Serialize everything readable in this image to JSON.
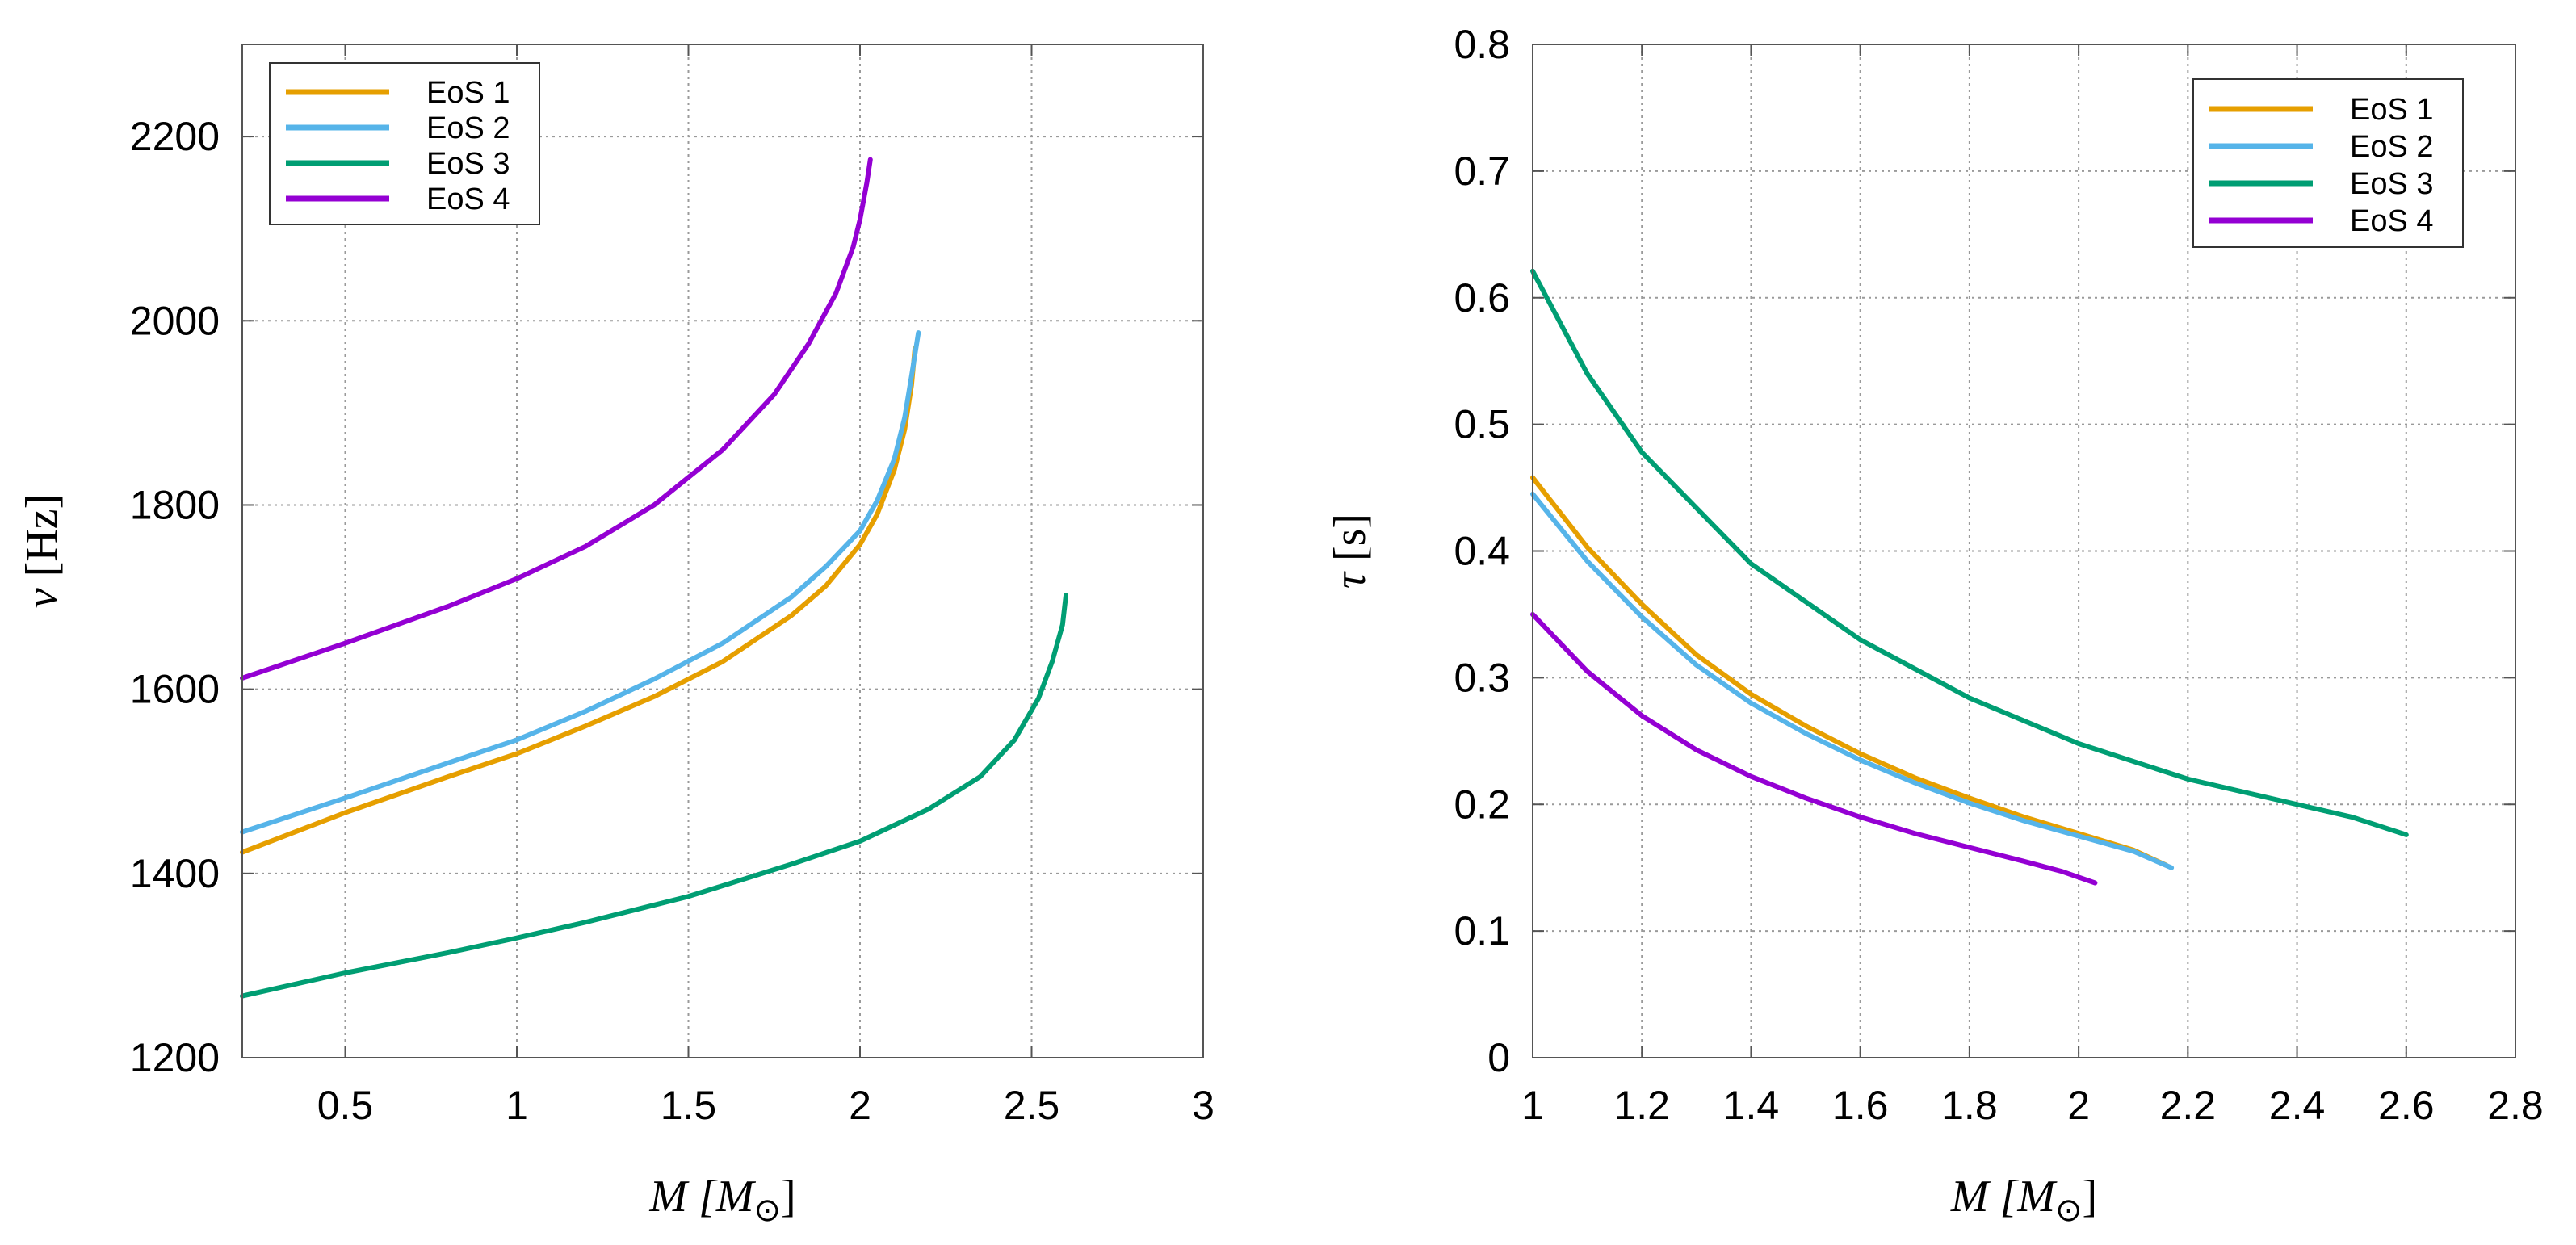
{
  "chart_data": [
    {
      "type": "line",
      "xlabel_var": "M",
      "xlabel_unit": "M",
      "ylabel_var": "ν",
      "ylabel_unit": "[Hz]",
      "xlim": [
        0.2,
        3.0
      ],
      "ylim": [
        1200,
        2300
      ],
      "xticks": [
        0.5,
        1,
        1.5,
        2,
        2.5,
        3
      ],
      "xtick_labels": [
        "0.5",
        "1",
        "1.5",
        "2",
        "2.5",
        "3"
      ],
      "yticks": [
        1200,
        1400,
        1600,
        1800,
        2000,
        2200
      ],
      "ytick_labels": [
        "1200",
        "1400",
        "1600",
        "1800",
        "2000",
        "2200"
      ],
      "grid": true,
      "legend_position": "top-left",
      "series": [
        {
          "name": "EoS 1",
          "color": "#E69F00",
          "x": [
            0.2,
            0.5,
            0.8,
            1.0,
            1.2,
            1.4,
            1.6,
            1.8,
            1.9,
            2.0,
            2.05,
            2.1,
            2.13,
            2.15,
            2.16
          ],
          "y": [
            1423,
            1466,
            1505,
            1530,
            1560,
            1592,
            1630,
            1680,
            1712,
            1757,
            1790,
            1838,
            1882,
            1930,
            1970
          ]
        },
        {
          "name": "EoS 2",
          "color": "#56B4E9",
          "x": [
            0.2,
            0.5,
            0.8,
            1.0,
            1.2,
            1.4,
            1.6,
            1.8,
            1.9,
            2.0,
            2.05,
            2.1,
            2.13,
            2.15,
            2.17
          ],
          "y": [
            1445,
            1482,
            1520,
            1545,
            1576,
            1611,
            1650,
            1700,
            1733,
            1772,
            1805,
            1850,
            1895,
            1940,
            1987
          ]
        },
        {
          "name": "EoS 3",
          "color": "#009E73",
          "x": [
            0.2,
            0.5,
            0.8,
            1.0,
            1.2,
            1.5,
            1.8,
            2.0,
            2.2,
            2.35,
            2.45,
            2.52,
            2.56,
            2.59,
            2.6
          ],
          "y": [
            1267,
            1292,
            1314,
            1330,
            1347,
            1375,
            1410,
            1435,
            1470,
            1505,
            1545,
            1590,
            1630,
            1670,
            1702
          ]
        },
        {
          "name": "EoS 4",
          "color": "#9400D3",
          "x": [
            0.2,
            0.5,
            0.8,
            1.0,
            1.2,
            1.4,
            1.6,
            1.75,
            1.85,
            1.93,
            1.98,
            2.0,
            2.02,
            2.03
          ],
          "y": [
            1612,
            1650,
            1690,
            1720,
            1755,
            1800,
            1860,
            1920,
            1975,
            2030,
            2080,
            2110,
            2150,
            2175
          ]
        }
      ]
    },
    {
      "type": "line",
      "xlabel_var": "M",
      "xlabel_unit": "M",
      "ylabel_var": "τ",
      "ylabel_unit": "[s]",
      "xlim": [
        1.0,
        2.8
      ],
      "ylim": [
        0,
        0.8
      ],
      "xticks": [
        1,
        1.2,
        1.4,
        1.6,
        1.8,
        2,
        2.2,
        2.4,
        2.6,
        2.8
      ],
      "xtick_labels": [
        "1",
        "1.2",
        "1.4",
        "1.6",
        "1.8",
        "2",
        "2.2",
        "2.4",
        "2.6",
        "2.8"
      ],
      "yticks": [
        0,
        0.1,
        0.2,
        0.3,
        0.4,
        0.5,
        0.6,
        0.7,
        0.8
      ],
      "ytick_labels": [
        "0",
        "0.1",
        "0.2",
        "0.3",
        "0.4",
        "0.5",
        "0.6",
        "0.7",
        "0.8"
      ],
      "grid": true,
      "legend_position": "top-right",
      "series": [
        {
          "name": "EoS 1",
          "color": "#E69F00",
          "x": [
            1.0,
            1.1,
            1.2,
            1.3,
            1.4,
            1.5,
            1.6,
            1.7,
            1.8,
            1.9,
            2.0,
            2.1,
            2.16
          ],
          "y": [
            0.458,
            0.403,
            0.358,
            0.318,
            0.287,
            0.262,
            0.24,
            0.221,
            0.205,
            0.19,
            0.177,
            0.164,
            0.152
          ]
        },
        {
          "name": "EoS 2",
          "color": "#56B4E9",
          "x": [
            1.0,
            1.1,
            1.2,
            1.3,
            1.4,
            1.5,
            1.6,
            1.7,
            1.8,
            1.9,
            2.0,
            2.1,
            2.17
          ],
          "y": [
            0.445,
            0.392,
            0.348,
            0.31,
            0.28,
            0.256,
            0.235,
            0.217,
            0.201,
            0.187,
            0.175,
            0.163,
            0.15
          ]
        },
        {
          "name": "EoS 3",
          "color": "#009E73",
          "x": [
            1.0,
            1.1,
            1.2,
            1.4,
            1.6,
            1.8,
            2.0,
            2.2,
            2.4,
            2.5,
            2.6
          ],
          "y": [
            0.621,
            0.54,
            0.478,
            0.39,
            0.33,
            0.284,
            0.248,
            0.22,
            0.2,
            0.19,
            0.176
          ]
        },
        {
          "name": "EoS 4",
          "color": "#9400D3",
          "x": [
            1.0,
            1.1,
            1.2,
            1.3,
            1.4,
            1.5,
            1.6,
            1.7,
            1.8,
            1.9,
            1.97,
            2.03
          ],
          "y": [
            0.35,
            0.305,
            0.27,
            0.243,
            0.222,
            0.205,
            0.19,
            0.177,
            0.166,
            0.155,
            0.147,
            0.138
          ]
        }
      ]
    }
  ]
}
